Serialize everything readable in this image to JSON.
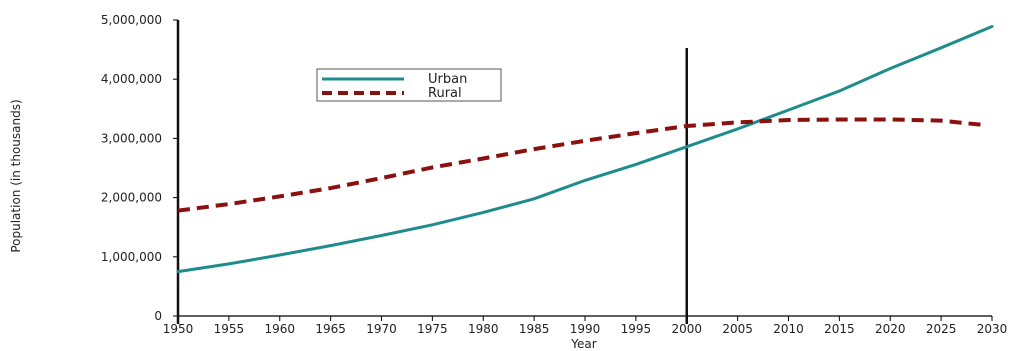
{
  "chart_data": {
    "type": "line",
    "title": "",
    "xlabel": "Year",
    "ylabel": "Population (in thousands)",
    "xlim": [
      1950,
      2030
    ],
    "ylim": [
      0,
      5000000
    ],
    "x_ticks": [
      "1950",
      "1955",
      "1960",
      "1965",
      "1970",
      "1975",
      "1980",
      "1985",
      "1990",
      "1995",
      "2000",
      "2005",
      "2010",
      "2015",
      "2020",
      "2025",
      "2030"
    ],
    "y_ticks": [
      "0",
      "1,000,000",
      "2,000,000",
      "3,000,000",
      "4,000,000",
      "5,000,000"
    ],
    "y_tick_values": [
      0,
      1000000,
      2000000,
      3000000,
      4000000,
      5000000
    ],
    "vertical_markers": [
      1950,
      2000
    ],
    "legend_position": "top-left inside plot",
    "grid": false,
    "series": [
      {
        "name": "Urban",
        "color": "#1e8c8c",
        "style": "solid",
        "x": [
          1950,
          1955,
          1960,
          1965,
          1970,
          1975,
          1980,
          1985,
          1990,
          1995,
          2000,
          2005,
          2010,
          2015,
          2020,
          2025,
          2030
        ],
        "values": [
          750000,
          880000,
          1030000,
          1190000,
          1360000,
          1540000,
          1750000,
          1980000,
          2290000,
          2560000,
          2860000,
          3160000,
          3480000,
          3800000,
          4180000,
          4530000,
          4890000
        ]
      },
      {
        "name": "Rural",
        "color": "#8b1010",
        "style": "dashed",
        "x": [
          1950,
          1955,
          1960,
          1965,
          1970,
          1975,
          1980,
          1985,
          1990,
          1995,
          2000,
          2005,
          2010,
          2015,
          2020,
          2025,
          2029
        ],
        "values": [
          1780000,
          1890000,
          2020000,
          2160000,
          2330000,
          2510000,
          2660000,
          2820000,
          2960000,
          3090000,
          3210000,
          3270000,
          3310000,
          3320000,
          3320000,
          3300000,
          3230000
        ]
      }
    ]
  }
}
